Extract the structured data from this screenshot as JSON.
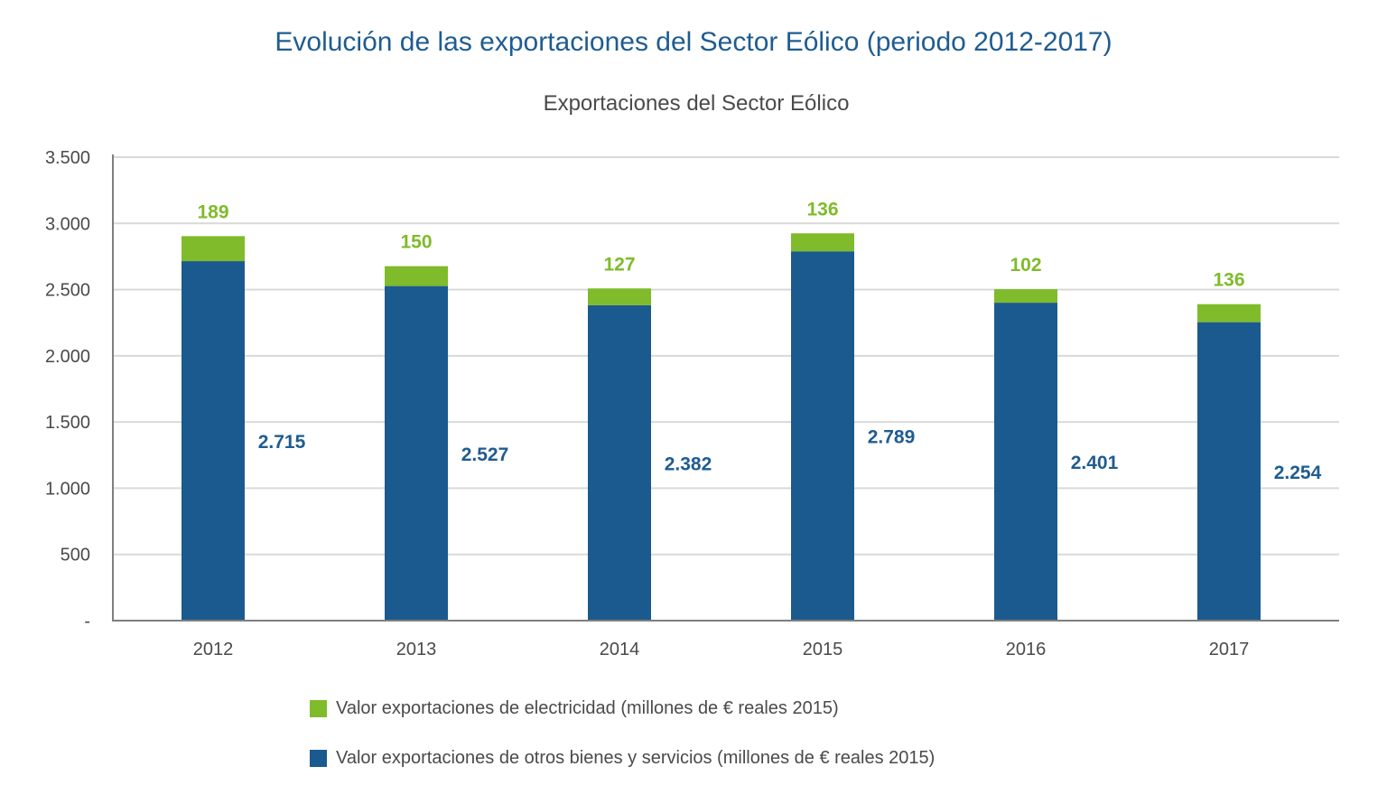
{
  "title": "Evolución de las exportaciones del Sector Eólico (periodo 2012-2017)",
  "chart_data": {
    "type": "bar",
    "stacked": true,
    "title": "Exportaciones del Sector Eólico",
    "xlabel": "",
    "ylabel": "",
    "ylim": [
      0,
      3500
    ],
    "yticks": [
      0,
      500,
      1000,
      1500,
      2000,
      2500,
      3000,
      3500
    ],
    "ytick_labels": [
      "-",
      "500",
      "1.000",
      "1.500",
      "2.000",
      "2.500",
      "3.000",
      "3.500"
    ],
    "grid": true,
    "legend_position": "bottom",
    "categories": [
      "2012",
      "2013",
      "2014",
      "2015",
      "2016",
      "2017"
    ],
    "series": [
      {
        "name": "Valor exportaciones de otros bienes y servicios (millones de € reales 2015)",
        "color": "#1b5a8e",
        "values": [
          2715,
          2527,
          2382,
          2789,
          2401,
          2254
        ],
        "labels": [
          "2.715",
          "2.527",
          "2.382",
          "2.789",
          "2.401",
          "2.254"
        ]
      },
      {
        "name": "Valor exportaciones de electricidad (millones de € reales 2015)",
        "color": "#7fbb2a",
        "values": [
          189,
          150,
          127,
          136,
          102,
          136
        ],
        "labels": [
          "189",
          "150",
          "127",
          "136",
          "102",
          "136"
        ]
      }
    ]
  },
  "legend": [
    {
      "label": "Valor exportaciones de electricidad (millones de € reales 2015)",
      "color": "#7fbb2a"
    },
    {
      "label": "Valor exportaciones de otros bienes y servicios (millones de € reales 2015)",
      "color": "#1b5a8e"
    }
  ]
}
